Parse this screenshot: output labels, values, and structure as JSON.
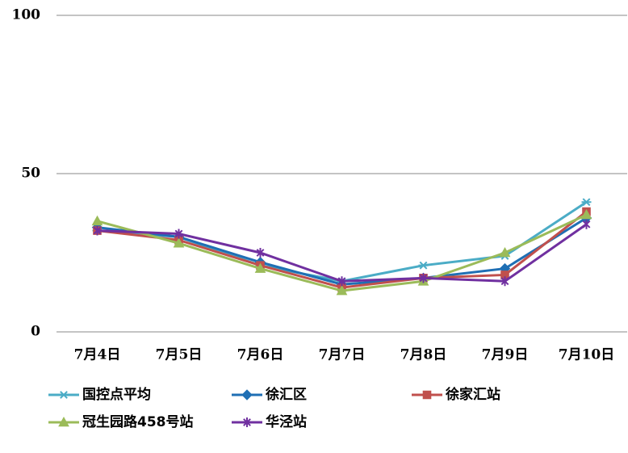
{
  "chart_data": {
    "type": "line",
    "categories": [
      "7月4日",
      "7月5日",
      "7月6日",
      "7月7日",
      "7月8日",
      "7月9日",
      "7月10日"
    ],
    "series": [
      {
        "name": "国控点平均",
        "color": "#4bacc6",
        "marker": "asterisk",
        "values": [
          32,
          30,
          21,
          16,
          21,
          24,
          41
        ]
      },
      {
        "name": "徐汇区",
        "color": "#1f6fb4",
        "marker": "diamond",
        "values": [
          33,
          30,
          22,
          15,
          17,
          20,
          36
        ]
      },
      {
        "name": "徐家汇站",
        "color": "#c0504d",
        "marker": "square",
        "values": [
          32,
          29,
          21,
          14,
          17,
          18,
          38
        ]
      },
      {
        "name": "冠生园路458号站",
        "color": "#9bbb59",
        "marker": "triangle",
        "values": [
          35,
          28,
          20,
          13,
          16,
          25,
          37
        ]
      },
      {
        "name": "华泾站",
        "color": "#7030a0",
        "marker": "star",
        "values": [
          32,
          31,
          25,
          16,
          17,
          16,
          34
        ]
      }
    ],
    "ylim": [
      0,
      100
    ],
    "yticks": [
      0,
      50,
      100
    ],
    "grid": true
  }
}
